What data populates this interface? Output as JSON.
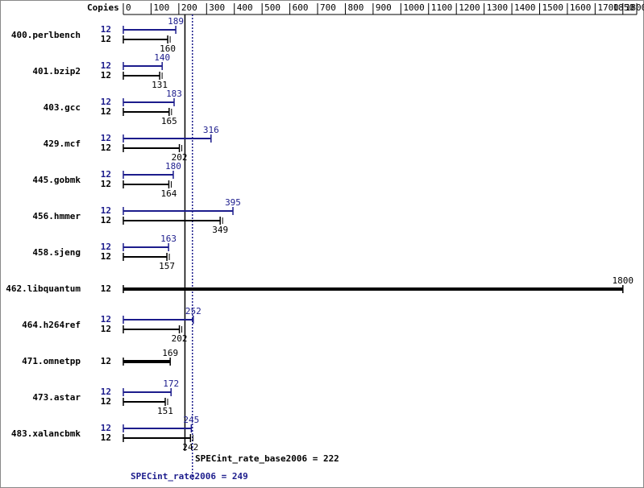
{
  "chart_data": {
    "type": "bar",
    "orientation": "horizontal",
    "x_header": "Copies",
    "categories": [
      "400.perlbench",
      "401.bzip2",
      "403.gcc",
      "429.mcf",
      "445.gobmk",
      "456.hmmer",
      "458.sjeng",
      "462.libquantum",
      "464.h264ref",
      "471.omnetpp",
      "473.astar",
      "483.xalancbmk"
    ],
    "series": [
      {
        "color": "#1c1c8c",
        "copies": [
          12,
          12,
          12,
          12,
          12,
          12,
          12,
          null,
          12,
          null,
          12,
          12
        ],
        "values": [
          189,
          140,
          183,
          316,
          180,
          395,
          163,
          null,
          252,
          null,
          172,
          245
        ]
      },
      {
        "color": "#000000",
        "copies": [
          12,
          12,
          12,
          12,
          12,
          12,
          12,
          12,
          12,
          12,
          12,
          12
        ],
        "values": [
          160,
          131,
          165,
          202,
          164,
          349,
          157,
          1800,
          202,
          169,
          151,
          242
        ]
      }
    ],
    "xlim": [
      0,
      1850
    ],
    "xticks": [
      0,
      100,
      200,
      300,
      400,
      500,
      600,
      700,
      800,
      900,
      1000,
      1100,
      1200,
      1300,
      1400,
      1500,
      1600,
      1700,
      1800,
      1850
    ],
    "reference_lines": [
      {
        "label": "SPECint_rate_base2006 = 222",
        "value": 222,
        "color": "#000000",
        "style": "solid"
      },
      {
        "label": "SPECint_rate2006 = 249",
        "value": 249,
        "color": "#1c1c8c",
        "style": "dotted"
      }
    ]
  }
}
